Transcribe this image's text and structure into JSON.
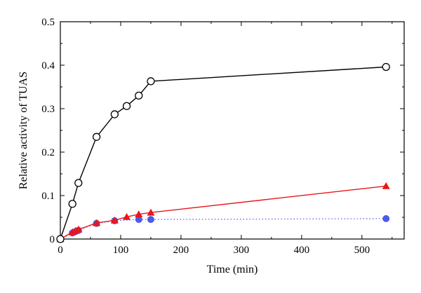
{
  "chart_data": {
    "type": "line",
    "xlabel": "Time (min)",
    "ylabel": "Relative activity of TUAS",
    "xlim": [
      0,
      570
    ],
    "ylim": [
      0,
      0.5
    ],
    "x_ticks": [
      0,
      100,
      200,
      300,
      400,
      500
    ],
    "y_ticks": [
      0,
      0.1,
      0.2,
      0.3,
      0.4,
      0.5
    ],
    "y_tick_labels": [
      "0",
      "0.1",
      "0.2",
      "0.3",
      "0.4",
      "0.5"
    ],
    "grid": false,
    "legend": "none",
    "series": [
      {
        "marker": "open-circle",
        "line_style": "solid",
        "color": "#000000",
        "x": [
          0,
          20,
          30,
          60,
          90,
          110,
          130,
          150,
          540
        ],
        "y": [
          0,
          0.081,
          0.129,
          0.235,
          0.287,
          0.306,
          0.33,
          0.363,
          0.396
        ]
      },
      {
        "marker": "filled-triangle",
        "line_style": "solid",
        "color": "#e8161b",
        "x": [
          0,
          20,
          25,
          30,
          60,
          90,
          110,
          130,
          150,
          540
        ],
        "y": [
          0,
          0.016,
          0.019,
          0.022,
          0.037,
          0.043,
          0.051,
          0.057,
          0.061,
          0.122
        ]
      },
      {
        "marker": "filled-circle",
        "line_style": "dotted",
        "color": "#4f5ae6",
        "x": [
          0,
          20,
          25,
          30,
          60,
          90,
          130,
          150,
          540
        ],
        "y": [
          0,
          0.014,
          0.017,
          0.02,
          0.036,
          0.042,
          0.045,
          0.045,
          0.047
        ]
      }
    ]
  }
}
